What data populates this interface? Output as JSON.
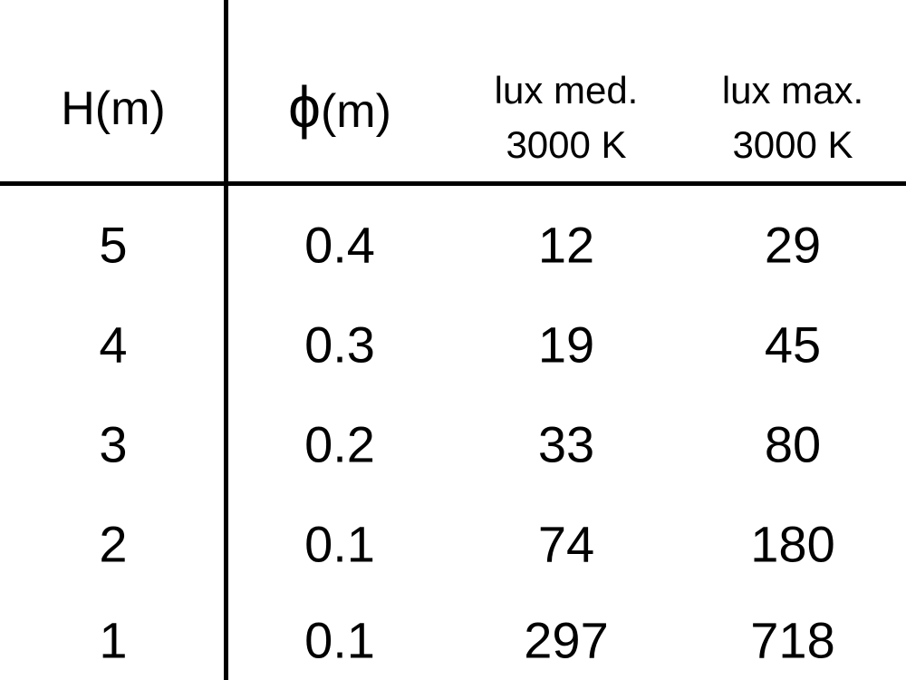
{
  "table": {
    "headers": [
      {
        "label": "H(m)"
      },
      {
        "symbol": "ϕ",
        "label": "(m)"
      },
      {
        "line1": "lux med.",
        "line2": "3000 K"
      },
      {
        "line1": "lux max.",
        "line2": "3000 K"
      }
    ],
    "rows": [
      [
        "5",
        "0.4",
        "12",
        "29"
      ],
      [
        "4",
        "0.3",
        "19",
        "45"
      ],
      [
        "3",
        "0.2",
        "33",
        "80"
      ],
      [
        "2",
        "0.1",
        "74",
        "180"
      ],
      [
        "1",
        "0.1",
        "297",
        "718"
      ]
    ]
  }
}
